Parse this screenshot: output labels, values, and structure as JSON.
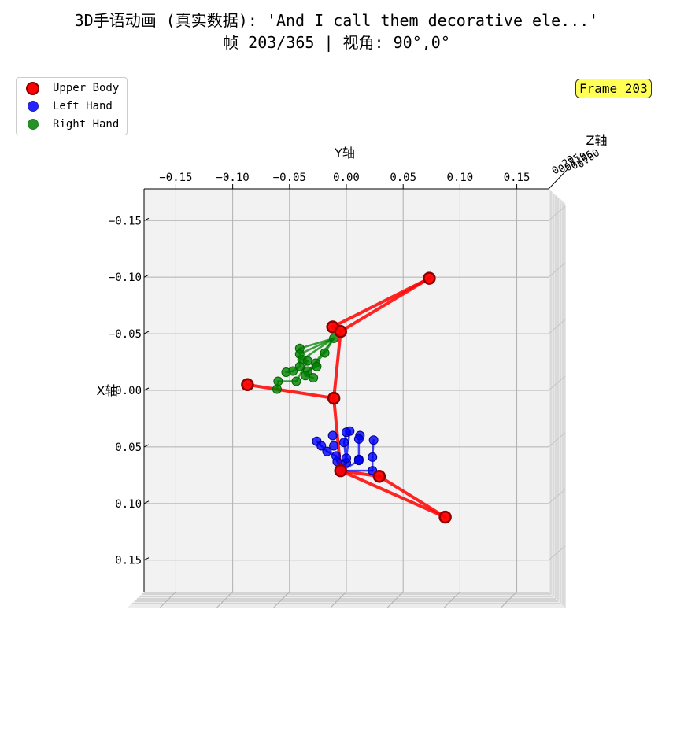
{
  "title_line1": "3D手语动画 (真实数据): 'And I call them decorative ele...'",
  "title_line2": "帧 203/365 | 视角: 90°,0°",
  "frame_badge": "Frame 203",
  "legend": [
    {
      "label": "Upper Body",
      "color": "#ff0000",
      "edge": "#8b0000"
    },
    {
      "label": "Left Hand",
      "color": "#0000ff",
      "edge": "#00008b"
    },
    {
      "label": "Right Hand",
      "color": "#008000",
      "edge": "#006400"
    }
  ],
  "chart_data": {
    "type": "scatter",
    "projection": "3d",
    "view": {
      "elev": 90,
      "azim": 0
    },
    "axes": {
      "xlabel": "X轴",
      "ylabel": "Y轴",
      "zlabel": "Z轴",
      "y_range": [
        -0.178,
        0.178
      ],
      "x_range": [
        -0.178,
        0.178
      ],
      "y_ticks": [
        "−0.15",
        "−0.10",
        "−0.05",
        "0.00",
        "0.05",
        "0.10",
        "0.15"
      ],
      "y_tick_values": [
        -0.15,
        -0.1,
        -0.05,
        0.0,
        0.05,
        0.1,
        0.15
      ],
      "x_ticks": [
        "−0.15",
        "−0.10",
        "−0.05",
        "0.00",
        "0.05",
        "0.10",
        "0.15"
      ],
      "x_tick_values": [
        -0.15,
        -0.1,
        -0.05,
        0.0,
        0.05,
        0.1,
        0.15
      ],
      "z_ticks": [
        "0.20",
        "0.15",
        "0.10",
        "0.05",
        "0.00"
      ],
      "grid": true
    },
    "series": [
      {
        "name": "Upper Body",
        "color": "#ff0000",
        "edge": "#8b0000",
        "points": [
          {
            "y": 0.073,
            "x": -0.099
          },
          {
            "y": -0.012,
            "x": -0.056
          },
          {
            "y": -0.005,
            "x": -0.052
          },
          {
            "y": -0.087,
            "x": -0.005
          },
          {
            "y": -0.011,
            "x": 0.007
          },
          {
            "y": -0.005,
            "x": 0.071
          },
          {
            "y": 0.029,
            "x": 0.076
          },
          {
            "y": 0.087,
            "x": 0.112
          }
        ],
        "edges": [
          [
            0,
            1
          ],
          [
            0,
            2
          ],
          [
            1,
            2
          ],
          [
            2,
            4
          ],
          [
            4,
            3
          ],
          [
            4,
            5
          ],
          [
            5,
            6
          ],
          [
            5,
            7
          ],
          [
            6,
            7
          ]
        ]
      },
      {
        "name": "Left Hand",
        "color": "#0000ff",
        "edge": "#00008b",
        "points": [
          {
            "y": -0.004,
            "x": 0.071
          },
          {
            "y": -0.012,
            "x": 0.04
          },
          {
            "y": -0.026,
            "x": 0.045
          },
          {
            "y": -0.022,
            "x": 0.049
          },
          {
            "y": -0.017,
            "x": 0.054
          },
          {
            "y": -0.011,
            "x": 0.049
          },
          {
            "y": -0.002,
            "x": 0.046
          },
          {
            "y": 0.0,
            "x": 0.037
          },
          {
            "y": 0.003,
            "x": 0.036
          },
          {
            "y": 0.012,
            "x": 0.04
          },
          {
            "y": 0.011,
            "x": 0.043
          },
          {
            "y": 0.024,
            "x": 0.044
          },
          {
            "y": 0.023,
            "x": 0.059
          },
          {
            "y": 0.011,
            "x": 0.061
          },
          {
            "y": 0.023,
            "x": 0.071
          },
          {
            "y": 0.0,
            "x": 0.064
          },
          {
            "y": -0.008,
            "x": 0.063
          },
          {
            "y": -0.009,
            "x": 0.058
          },
          {
            "y": 0.0,
            "x": 0.06
          },
          {
            "y": 0.011,
            "x": 0.062
          }
        ],
        "edges": [
          [
            0,
            16
          ],
          [
            0,
            15
          ],
          [
            0,
            18
          ],
          [
            0,
            19
          ],
          [
            0,
            14
          ],
          [
            16,
            17
          ],
          [
            17,
            4
          ],
          [
            4,
            3
          ],
          [
            3,
            2
          ],
          [
            15,
            6
          ],
          [
            6,
            7
          ],
          [
            18,
            8
          ],
          [
            19,
            10
          ],
          [
            10,
            9
          ],
          [
            14,
            12
          ],
          [
            12,
            11
          ],
          [
            13,
            19
          ]
        ]
      },
      {
        "name": "Right Hand",
        "color": "#008000",
        "edge": "#006400",
        "points": [
          {
            "y": -0.011,
            "x": -0.046
          },
          {
            "y": -0.041,
            "x": -0.037
          },
          {
            "y": -0.041,
            "x": -0.032
          },
          {
            "y": -0.019,
            "x": -0.033
          },
          {
            "y": -0.039,
            "x": -0.027
          },
          {
            "y": -0.034,
            "x": -0.026
          },
          {
            "y": -0.027,
            "x": -0.024
          },
          {
            "y": -0.026,
            "x": -0.021
          },
          {
            "y": -0.041,
            "x": -0.021
          },
          {
            "y": -0.047,
            "x": -0.017
          },
          {
            "y": -0.053,
            "x": -0.016
          },
          {
            "y": -0.034,
            "x": -0.017
          },
          {
            "y": -0.036,
            "x": -0.013
          },
          {
            "y": -0.029,
            "x": -0.011
          },
          {
            "y": -0.044,
            "x": -0.008
          },
          {
            "y": -0.06,
            "x": -0.008
          },
          {
            "y": -0.061,
            "x": -0.001
          }
        ],
        "edges": [
          [
            0,
            1
          ],
          [
            0,
            2
          ],
          [
            0,
            3
          ],
          [
            0,
            4
          ],
          [
            0,
            12
          ],
          [
            1,
            2
          ],
          [
            2,
            8
          ],
          [
            8,
            9
          ],
          [
            9,
            10
          ],
          [
            3,
            6
          ],
          [
            6,
            7
          ],
          [
            7,
            11
          ],
          [
            4,
            5
          ],
          [
            5,
            14
          ],
          [
            14,
            15
          ],
          [
            15,
            16
          ],
          [
            12,
            13
          ]
        ]
      }
    ]
  }
}
